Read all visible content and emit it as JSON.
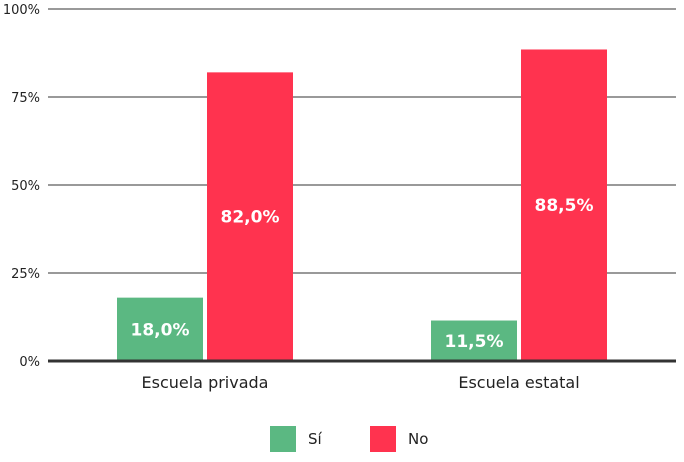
{
  "chart_data": {
    "type": "bar",
    "categories": [
      "Escuela privada",
      "Escuela estatal"
    ],
    "series": [
      {
        "name": "Sí",
        "values": [
          18.0,
          11.5
        ],
        "labels": [
          "18,0%",
          "11,5%"
        ],
        "color": "#5bb882"
      },
      {
        "name": "No",
        "values": [
          82.0,
          88.5
        ],
        "labels": [
          "82,0%",
          "88,5%"
        ],
        "color": "#ff334f"
      }
    ],
    "yticks": [
      0,
      25,
      50,
      75,
      100
    ],
    "ytick_labels": [
      "0%",
      "25%",
      "50%",
      "75%",
      "100%"
    ],
    "ylim": [
      0,
      100
    ],
    "grid": true,
    "legend_position": "bottom"
  }
}
